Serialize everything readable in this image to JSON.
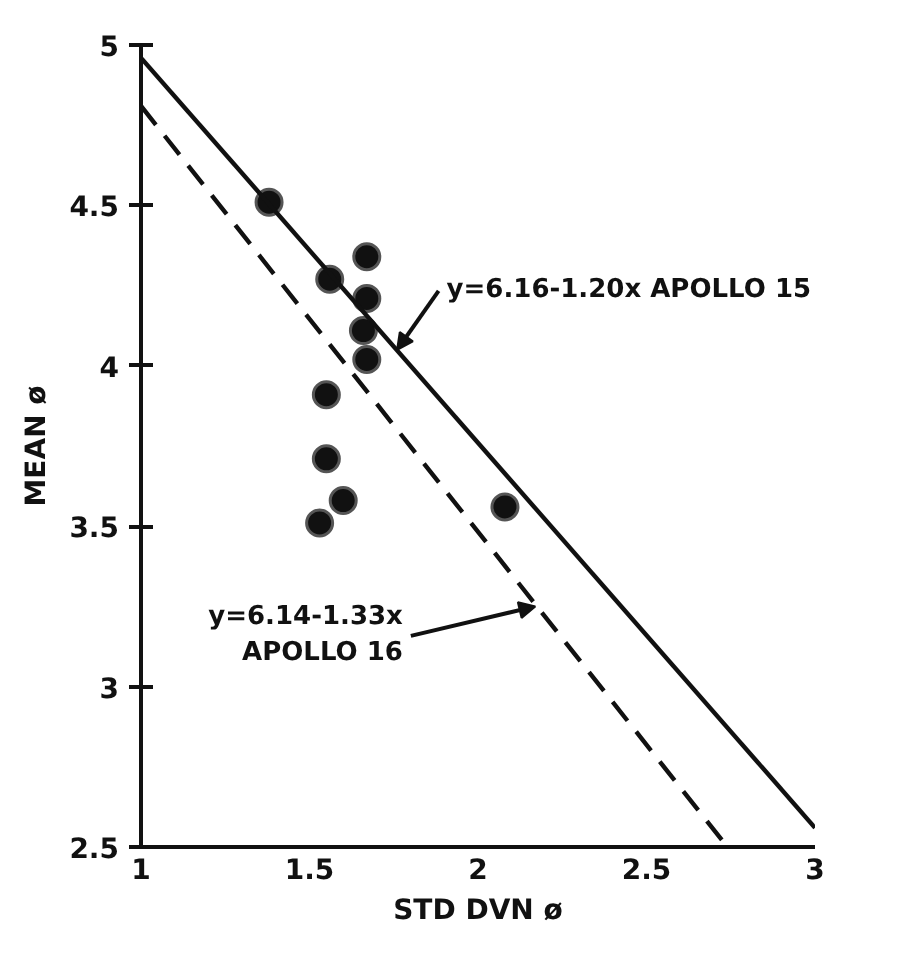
{
  "chart_data": {
    "type": "scatter",
    "xlabel": "STD DVN ø",
    "ylabel": "MEAN ø",
    "xlim": [
      1,
      3
    ],
    "ylim": [
      2.5,
      5
    ],
    "xticks": [
      1,
      1.5,
      2,
      2.5,
      3
    ],
    "yticks": [
      2.5,
      3,
      3.5,
      4,
      4.5,
      5
    ],
    "grid": false,
    "series": [
      {
        "marker": "circle",
        "color": "#111111",
        "x": [
          1.38,
          1.56,
          1.67,
          1.67,
          1.66,
          1.67,
          1.55,
          1.55,
          1.6,
          1.53,
          2.08
        ],
        "values": [
          4.51,
          4.27,
          4.34,
          4.21,
          4.11,
          4.02,
          3.91,
          3.71,
          3.58,
          3.51,
          3.56
        ]
      },
      {
        "type": "line",
        "color": "#111111",
        "line_style": "solid",
        "x": [
          1,
          3
        ],
        "values": [
          4.96,
          2.56
        ]
      },
      {
        "type": "line",
        "color": "#111111",
        "line_style": "dashed",
        "x": [
          1,
          2.74
        ],
        "values": [
          4.81,
          2.5
        ]
      }
    ],
    "annotations": [
      {
        "text": "y=6.16-1.20x  APOLLO 15",
        "x": 1.76,
        "y": 4.05
      },
      {
        "text": "y=6.14-1.33x\nAPOLLO 16",
        "x": 2.17,
        "y": 3.25
      }
    ]
  }
}
